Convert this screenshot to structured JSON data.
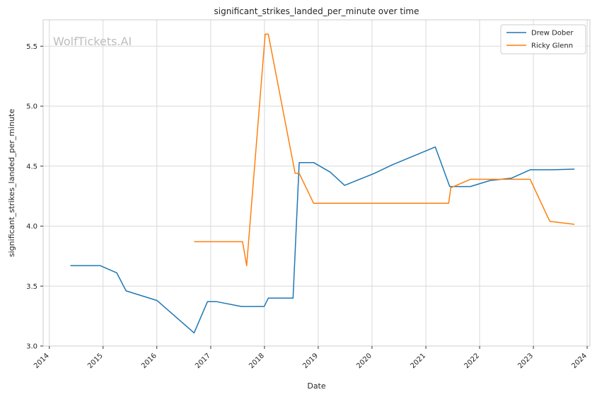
{
  "chart_data": {
    "type": "line",
    "title": "significant_strikes_landed_per_minute over time",
    "xlabel": "Date",
    "ylabel": "significant_strikes_landed_per_minute",
    "watermark": "WolfTickets.AI",
    "x_type": "date",
    "xlim": [
      "2013-11-20",
      "2024-01-20"
    ],
    "ylim": [
      3.0,
      5.72
    ],
    "x_ticks": [
      "2014",
      "2015",
      "2016",
      "2017",
      "2018",
      "2019",
      "2020",
      "2021",
      "2022",
      "2023",
      "2024"
    ],
    "y_ticks": [
      "3.0",
      "3.5",
      "4.0",
      "4.5",
      "5.0",
      "5.5"
    ],
    "grid": true,
    "legend_position": "top-right",
    "series": [
      {
        "name": "Drew Dober",
        "color": "#1f77b4",
        "points": [
          [
            "2014-05-24",
            3.67
          ],
          [
            "2014-12-13",
            3.67
          ],
          [
            "2015-04-04",
            3.61
          ],
          [
            "2015-06-06",
            3.46
          ],
          [
            "2016-01-02",
            3.38
          ],
          [
            "2016-09-10",
            3.11
          ],
          [
            "2016-12-10",
            3.37
          ],
          [
            "2017-02-11",
            3.37
          ],
          [
            "2017-07-29",
            3.33
          ],
          [
            "2017-12-30",
            3.33
          ],
          [
            "2018-01-27",
            3.4
          ],
          [
            "2018-07-14",
            3.4
          ],
          [
            "2018-08-25",
            4.53
          ],
          [
            "2018-12-01",
            4.53
          ],
          [
            "2019-03-23",
            4.45
          ],
          [
            "2019-06-29",
            4.34
          ],
          [
            "2020-01-18",
            4.44
          ],
          [
            "2020-05-16",
            4.51
          ],
          [
            "2021-03-06",
            4.66
          ],
          [
            "2021-06-12",
            4.33
          ],
          [
            "2021-10-30",
            4.33
          ],
          [
            "2022-03-12",
            4.38
          ],
          [
            "2022-08-06",
            4.4
          ],
          [
            "2022-12-10",
            4.47
          ],
          [
            "2023-04-22",
            4.47
          ],
          [
            "2023-05-13",
            4.47
          ],
          [
            "2023-10-07",
            4.475
          ]
        ]
      },
      {
        "name": "Ricky Glenn",
        "color": "#ff7f0e",
        "points": [
          [
            "2016-09-10",
            3.87
          ],
          [
            "2017-08-05",
            3.87
          ],
          [
            "2017-09-02",
            3.67
          ],
          [
            "2018-01-06",
            5.6
          ],
          [
            "2018-01-27",
            5.6
          ],
          [
            "2018-07-28",
            4.44
          ],
          [
            "2018-08-25",
            4.44
          ],
          [
            "2018-12-01",
            4.19
          ],
          [
            "2021-06-05",
            4.19
          ],
          [
            "2021-06-19",
            4.32
          ],
          [
            "2021-10-30",
            4.39
          ],
          [
            "2022-12-10",
            4.39
          ],
          [
            "2023-04-22",
            4.04
          ],
          [
            "2023-10-07",
            4.015
          ]
        ]
      }
    ]
  }
}
